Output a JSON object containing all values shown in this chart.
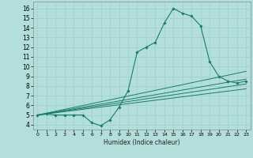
{
  "xlabel": "Humidex (Indice chaleur)",
  "bg_color": "#b2dfdb",
  "line_color": "#1a7a6e",
  "xlim": [
    -0.5,
    23.5
  ],
  "ylim": [
    3.5,
    16.7
  ],
  "xticks": [
    0,
    1,
    2,
    3,
    4,
    5,
    6,
    7,
    8,
    9,
    10,
    11,
    12,
    13,
    14,
    15,
    16,
    17,
    18,
    19,
    20,
    21,
    22,
    23
  ],
  "yticks": [
    4,
    5,
    6,
    7,
    8,
    9,
    10,
    11,
    12,
    13,
    14,
    15,
    16
  ],
  "main_x": [
    0,
    1,
    2,
    3,
    4,
    5,
    6,
    7,
    8,
    9,
    10,
    11,
    12,
    13,
    14,
    15,
    16,
    17,
    18,
    19,
    20,
    21,
    22,
    23
  ],
  "main_y": [
    5.0,
    5.1,
    5.0,
    5.0,
    5.0,
    5.0,
    4.2,
    3.9,
    4.5,
    5.8,
    7.5,
    11.5,
    12.0,
    12.5,
    14.5,
    16.0,
    15.5,
    15.2,
    14.2,
    10.5,
    9.0,
    8.5,
    8.3,
    8.5
  ],
  "straight_lines": [
    {
      "x": [
        0,
        23
      ],
      "y": [
        5.0,
        9.5
      ]
    },
    {
      "x": [
        0,
        23
      ],
      "y": [
        5.0,
        8.7
      ]
    },
    {
      "x": [
        0,
        23
      ],
      "y": [
        5.0,
        8.2
      ]
    },
    {
      "x": [
        0,
        23
      ],
      "y": [
        5.0,
        7.7
      ]
    }
  ]
}
